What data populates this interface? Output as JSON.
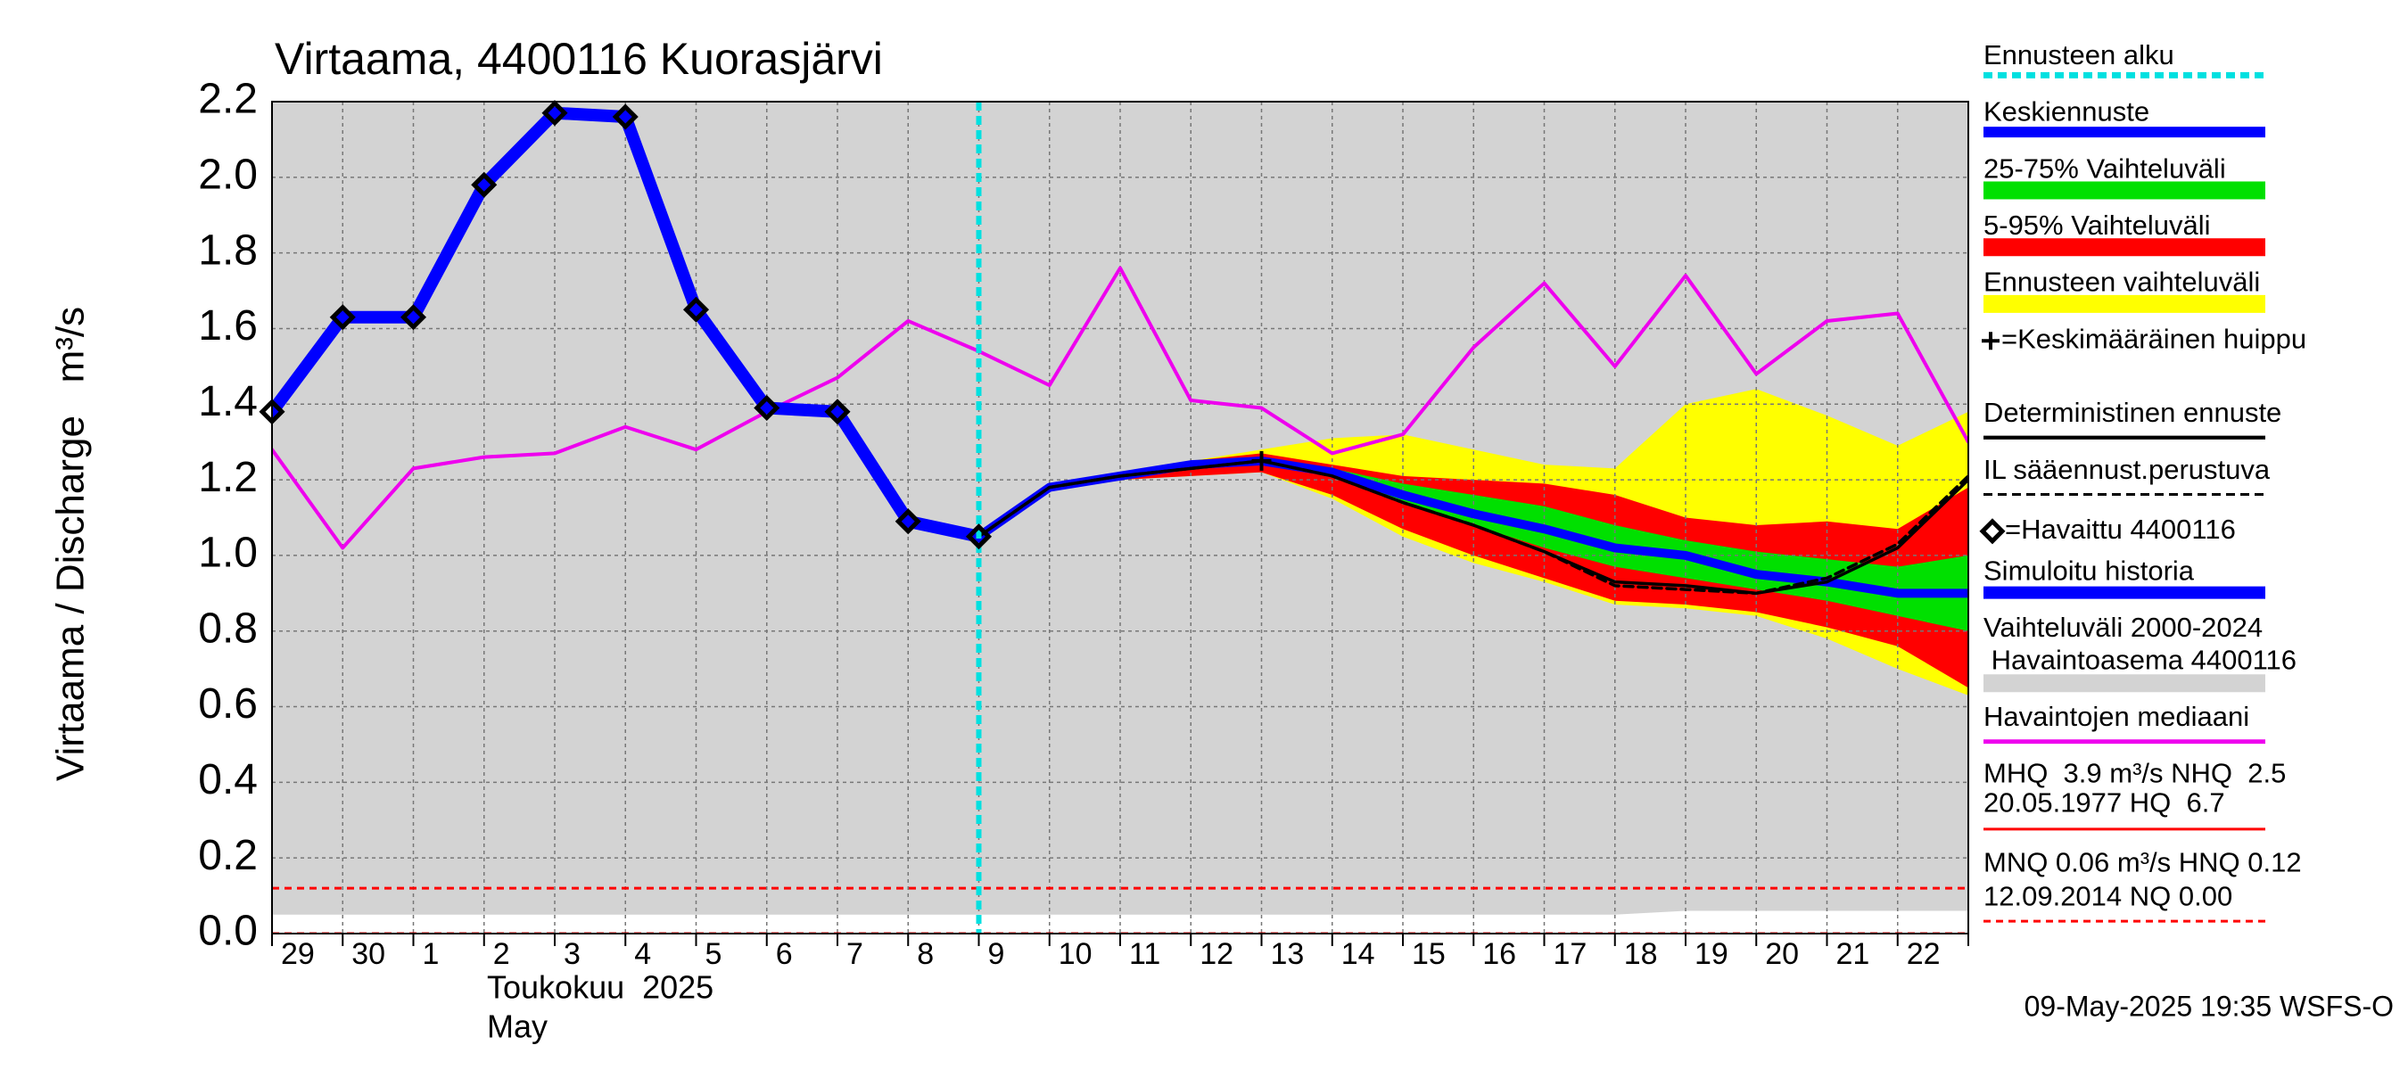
{
  "chart_data": {
    "type": "line",
    "title": "Virtaama, 4400116 Kuorasjärvi",
    "y_label": "Virtaama / Discharge   m³/s",
    "month_label": [
      "Toukokuu  2025",
      "May"
    ],
    "footer": "09-May-2025 19:35 WSFS-O",
    "categories": [
      "29",
      "30",
      "1",
      "2",
      "3",
      "4",
      "5",
      "6",
      "7",
      "8",
      "9",
      "10",
      "11",
      "12",
      "13",
      "14",
      "15",
      "16",
      "17",
      "18",
      "19",
      "20",
      "21",
      "22",
      null
    ],
    "ylim": [
      0,
      2.2
    ],
    "yticks": [
      {
        "value": 0,
        "label": "0.0"
      },
      0.2,
      0.4,
      0.6,
      0.8,
      {
        "value": 1,
        "label": "1.0"
      },
      1.2,
      1.4,
      1.6,
      1.8,
      {
        "value": 2,
        "label": "2.0"
      },
      2.2
    ],
    "grid": true,
    "series": [
      {
        "name": "Ennusteen alku",
        "style": "vline",
        "color": "#00e0e0",
        "x": "9"
      },
      {
        "name": "Keskiennuste",
        "style": "line",
        "color": "#0000ff",
        "width": 10,
        "values": [
          null,
          null,
          null,
          null,
          null,
          null,
          null,
          null,
          null,
          null,
          1.05,
          1.18,
          1.21,
          1.24,
          1.25,
          1.22,
          1.16,
          1.11,
          1.07,
          1.02,
          1.0,
          0.95,
          0.93,
          0.9,
          0.9
        ]
      },
      {
        "name": "25-75% Vaihteluväli",
        "style": "band",
        "color": "#00e000",
        "upper": [
          null,
          null,
          null,
          null,
          null,
          null,
          null,
          null,
          null,
          null,
          1.05,
          1.18,
          1.21,
          1.24,
          1.25,
          1.23,
          1.19,
          1.16,
          1.13,
          1.08,
          1.04,
          1.01,
          0.99,
          0.97,
          1.0
        ],
        "lower": [
          null,
          null,
          null,
          null,
          null,
          null,
          null,
          null,
          null,
          null,
          1.05,
          1.18,
          1.21,
          1.23,
          1.24,
          1.21,
          1.14,
          1.08,
          1.02,
          0.97,
          0.94,
          0.91,
          0.88,
          0.84,
          0.8
        ]
      },
      {
        "name": "5-95% Vaihteluväli",
        "style": "band",
        "color": "#ff0000",
        "upper": [
          null,
          null,
          null,
          null,
          null,
          null,
          null,
          null,
          null,
          null,
          1.05,
          1.18,
          1.21,
          1.25,
          1.27,
          1.24,
          1.21,
          1.2,
          1.19,
          1.16,
          1.1,
          1.08,
          1.09,
          1.07,
          1.18
        ],
        "lower": [
          null,
          null,
          null,
          null,
          null,
          null,
          null,
          null,
          null,
          null,
          1.05,
          1.18,
          1.2,
          1.21,
          1.22,
          1.16,
          1.07,
          1.0,
          0.94,
          0.88,
          0.87,
          0.85,
          0.81,
          0.76,
          0.65
        ]
      },
      {
        "name": "Ennusteen vaihteluväli",
        "style": "band",
        "color": "#ffff00",
        "upper": [
          null,
          null,
          null,
          null,
          null,
          null,
          null,
          null,
          null,
          null,
          1.05,
          1.18,
          1.21,
          1.25,
          1.28,
          1.31,
          1.32,
          1.28,
          1.24,
          1.23,
          1.4,
          1.44,
          1.37,
          1.29,
          1.38
        ],
        "lower": [
          null,
          null,
          null,
          null,
          null,
          null,
          null,
          null,
          null,
          null,
          1.05,
          1.18,
          1.2,
          1.21,
          1.22,
          1.15,
          1.05,
          0.98,
          0.93,
          0.87,
          0.86,
          0.84,
          0.78,
          0.7,
          0.63
        ]
      },
      {
        "name": "=Keskimääräinen huippu",
        "style": "plus",
        "color": "#000000",
        "values": [
          null,
          null,
          null,
          null,
          null,
          null,
          null,
          null,
          null,
          null,
          null,
          null,
          null,
          null,
          1.25,
          null,
          null,
          null,
          null,
          null,
          null,
          null,
          null,
          null,
          null
        ]
      },
      {
        "name": "Deterministinen ennuste",
        "style": "line",
        "color": "#000000",
        "width": 3.5,
        "values": [
          null,
          null,
          null,
          null,
          null,
          null,
          null,
          null,
          null,
          null,
          1.05,
          1.18,
          1.21,
          1.23,
          1.25,
          1.21,
          1.14,
          1.08,
          1.01,
          0.93,
          0.92,
          0.9,
          0.93,
          1.02,
          1.2
        ]
      },
      {
        "name": "IL sääennust.perustuva",
        "style": "dashed",
        "color": "#000000",
        "width": 3.5,
        "values": [
          null,
          null,
          null,
          null,
          null,
          null,
          null,
          null,
          null,
          null,
          1.05,
          1.18,
          1.21,
          1.23,
          1.25,
          1.21,
          1.14,
          1.08,
          1.01,
          0.92,
          0.91,
          0.9,
          0.94,
          1.03,
          1.21
        ]
      },
      {
        "name": "=Havaittu 4400116",
        "style": "diamond",
        "color": "#000000",
        "values": [
          1.38,
          1.63,
          1.63,
          1.98,
          2.17,
          2.16,
          1.65,
          1.39,
          1.38,
          1.09,
          1.05,
          null,
          null,
          null,
          null,
          null,
          null,
          null,
          null,
          null,
          null,
          null,
          null,
          null,
          null
        ]
      },
      {
        "name": "Simuloitu historia",
        "style": "line",
        "color": "#0000ff",
        "width": 14,
        "values": [
          1.38,
          1.63,
          1.63,
          1.98,
          2.17,
          2.16,
          1.65,
          1.39,
          1.38,
          1.09,
          1.05,
          null,
          null,
          null,
          null,
          null,
          null,
          null,
          null,
          null,
          null,
          null,
          null,
          null,
          null
        ]
      },
      {
        "name": [
          "Vaihteluväli 2000-2024",
          " Havaintoasema 4400116"
        ],
        "style": "band",
        "color": "#d3d3d3",
        "upper": [
          2.2,
          2.2,
          2.2,
          2.2,
          2.2,
          2.2,
          2.2,
          2.2,
          2.2,
          2.2,
          2.2,
          2.2,
          2.2,
          2.2,
          2.2,
          2.2,
          2.2,
          2.2,
          2.2,
          2.2,
          2.2,
          2.2,
          2.2,
          2.2,
          2.2
        ],
        "lower": [
          0.05,
          0.05,
          0.05,
          0.05,
          0.05,
          0.05,
          0.05,
          0.05,
          0.05,
          0.05,
          0.05,
          0.05,
          0.05,
          0.05,
          0.05,
          0.05,
          0.05,
          0.05,
          0.05,
          0.05,
          0.06,
          0.06,
          0.06,
          0.06,
          0.06
        ]
      },
      {
        "name": "Havaintojen mediaani",
        "style": "line",
        "color": "#ee00ee",
        "width": 4,
        "values": [
          1.28,
          1.02,
          1.23,
          1.26,
          1.27,
          1.34,
          1.28,
          1.38,
          1.47,
          1.62,
          1.54,
          1.45,
          1.76,
          1.41,
          1.39,
          1.27,
          1.32,
          1.55,
          1.72,
          1.5,
          1.74,
          1.48,
          1.62,
          1.64,
          1.3
        ]
      }
    ],
    "stats": [
      {
        "lines": [
          "MHQ  3.9 m³/s NHQ  2.5",
          "20.05.1977 HQ  6.7"
        ],
        "color": "#ff0000",
        "dashed": false
      },
      {
        "lines": [
          "MNQ 0.06 m³/s HNQ 0.12",
          "12.09.2014 NQ 0.00"
        ],
        "color": "#ff0000",
        "dashed": true
      }
    ],
    "reference_lines": [
      {
        "value": 0.12,
        "color": "#ff0000"
      },
      {
        "value": 0,
        "color": "#ff0000"
      }
    ]
  }
}
